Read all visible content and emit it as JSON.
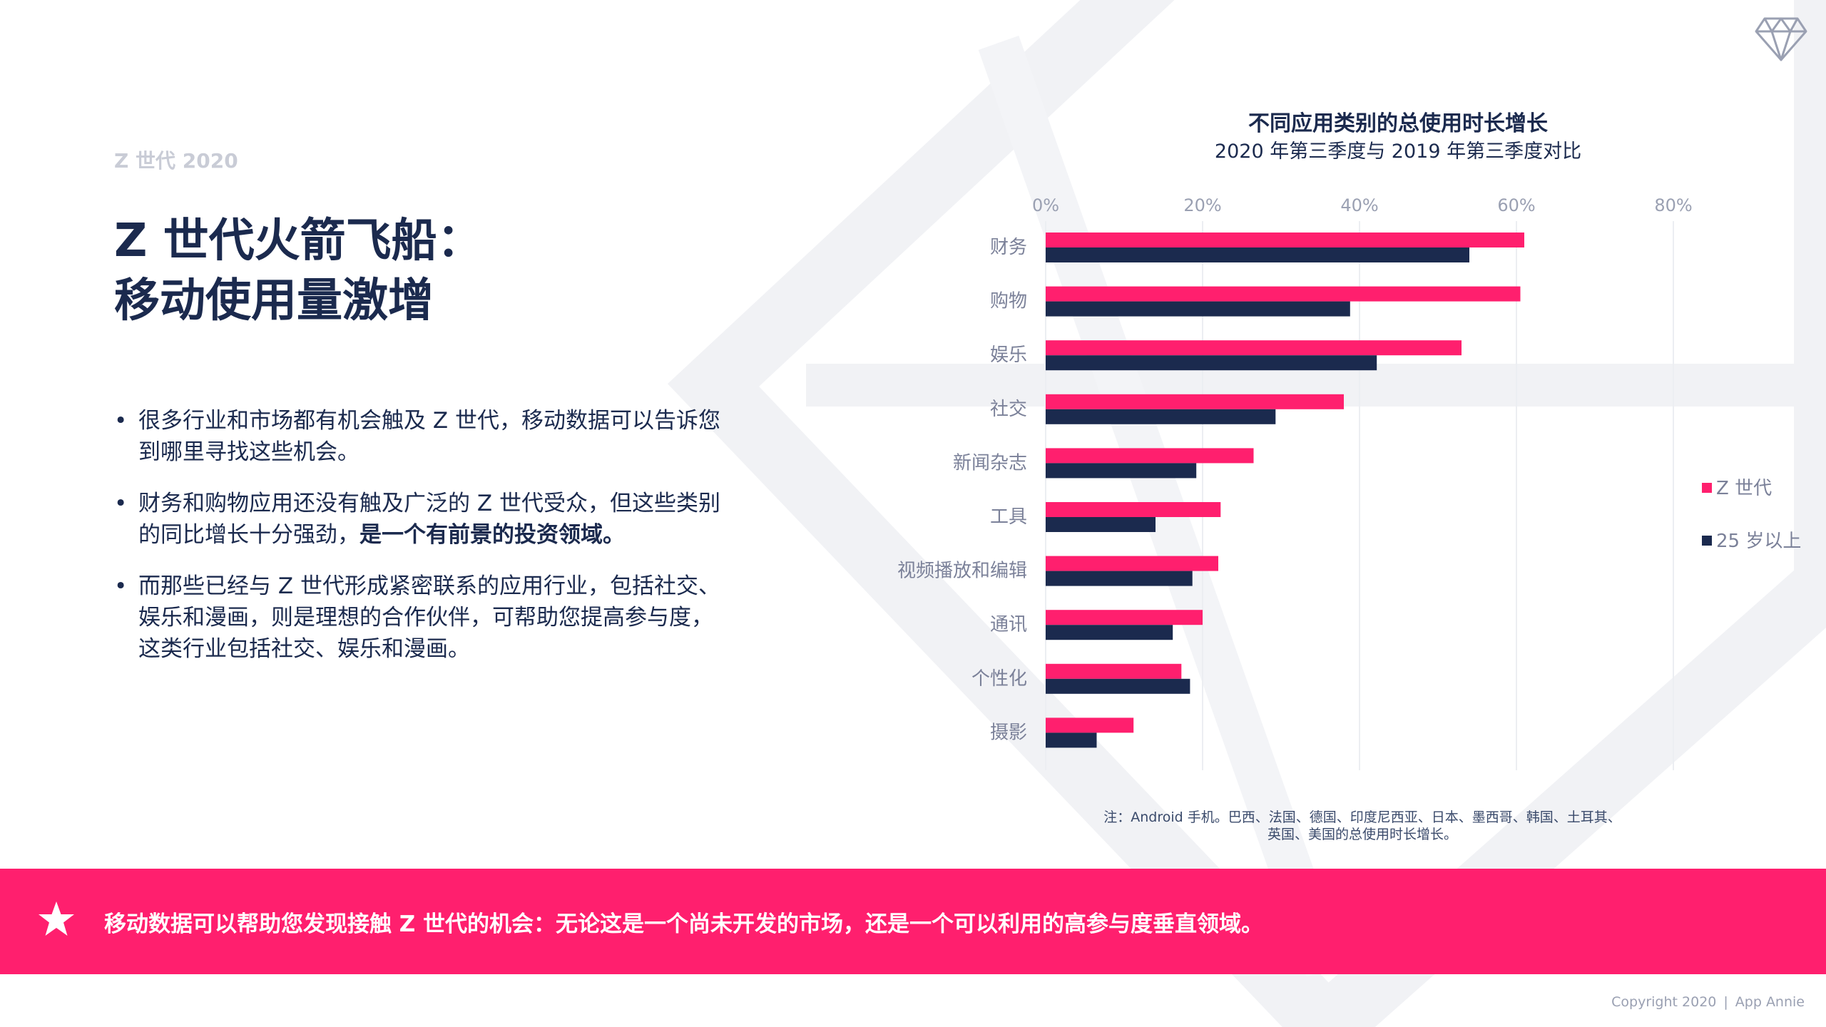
{
  "eyebrow": "Z 世代 2020",
  "headline": {
    "line1": "Z 世代火箭飞船：",
    "line2": "移动使用量激增"
  },
  "bullets": [
    {
      "text": "很多行业和市场都有机会触及 Z 世代，移动数据可以告诉您到哪里寻找这些机会。"
    },
    {
      "text": "财务和购物应用还没有触及广泛的 Z 世代受众，但这些类别的同比增长十分强劲，",
      "bold": "是一个有前景的投资领域。"
    },
    {
      "text": "而那些已经与 Z 世代形成紧密联系的应用行业，包括社交、娱乐和漫画，则是理想的合作伙伴，可帮助您提高参与度，这类行业包括社交、娱乐和漫画。"
    }
  ],
  "chart_data": {
    "type": "bar",
    "orientation": "horizontal",
    "title": "不同应用类别的总使用时长增长",
    "subtitle": "2020 年第三季度与 2019 年第三季度对比",
    "categories": [
      "财务",
      "购物",
      "娱乐",
      "社交",
      "新闻杂志",
      "工具",
      "视频播放和编辑",
      "通讯",
      "个性化",
      "摄影"
    ],
    "series": [
      {
        "name": "Z 世代",
        "color": "#ff1f6e",
        "values": [
          61,
          60.5,
          53,
          38,
          26.5,
          22.3,
          22,
          20,
          17.3,
          11.2
        ]
      },
      {
        "name": "25 岁以上",
        "color": "#1b2a4e",
        "values": [
          54,
          38.8,
          42.2,
          29.3,
          19.2,
          14,
          18.7,
          16.2,
          18.4,
          6.5
        ]
      }
    ],
    "xlim": [
      0,
      80
    ],
    "ticks": [
      0,
      20,
      40,
      60,
      80
    ],
    "tick_labels": [
      "0%",
      "20%",
      "40%",
      "60%",
      "80%"
    ],
    "grid": true,
    "legend": "right"
  },
  "legend": {
    "gen_z": "Z 世代",
    "over25": "25 岁以上"
  },
  "note": {
    "line1": "注：Android 手机。巴西、法国、德国、印度尼西亚、日本、墨西哥、韩国、土耳其、",
    "line2": "英国、美国的总使用时长增长。"
  },
  "banner": {
    "text": "移动数据可以帮助您发现接触 Z 世代的机会：无论这是一个尚未开发的市场，还是一个可以利用的高参与度垂直领域。"
  },
  "footer": {
    "copyright": "Copyright 2020",
    "separator": "|",
    "brand": "App Annie"
  },
  "colors": {
    "accent": "#ff1f6e",
    "navy": "#1b2a4e",
    "muted": "#9aa0b2"
  },
  "icons": [
    "diamond-logo-icon",
    "star-icon"
  ]
}
